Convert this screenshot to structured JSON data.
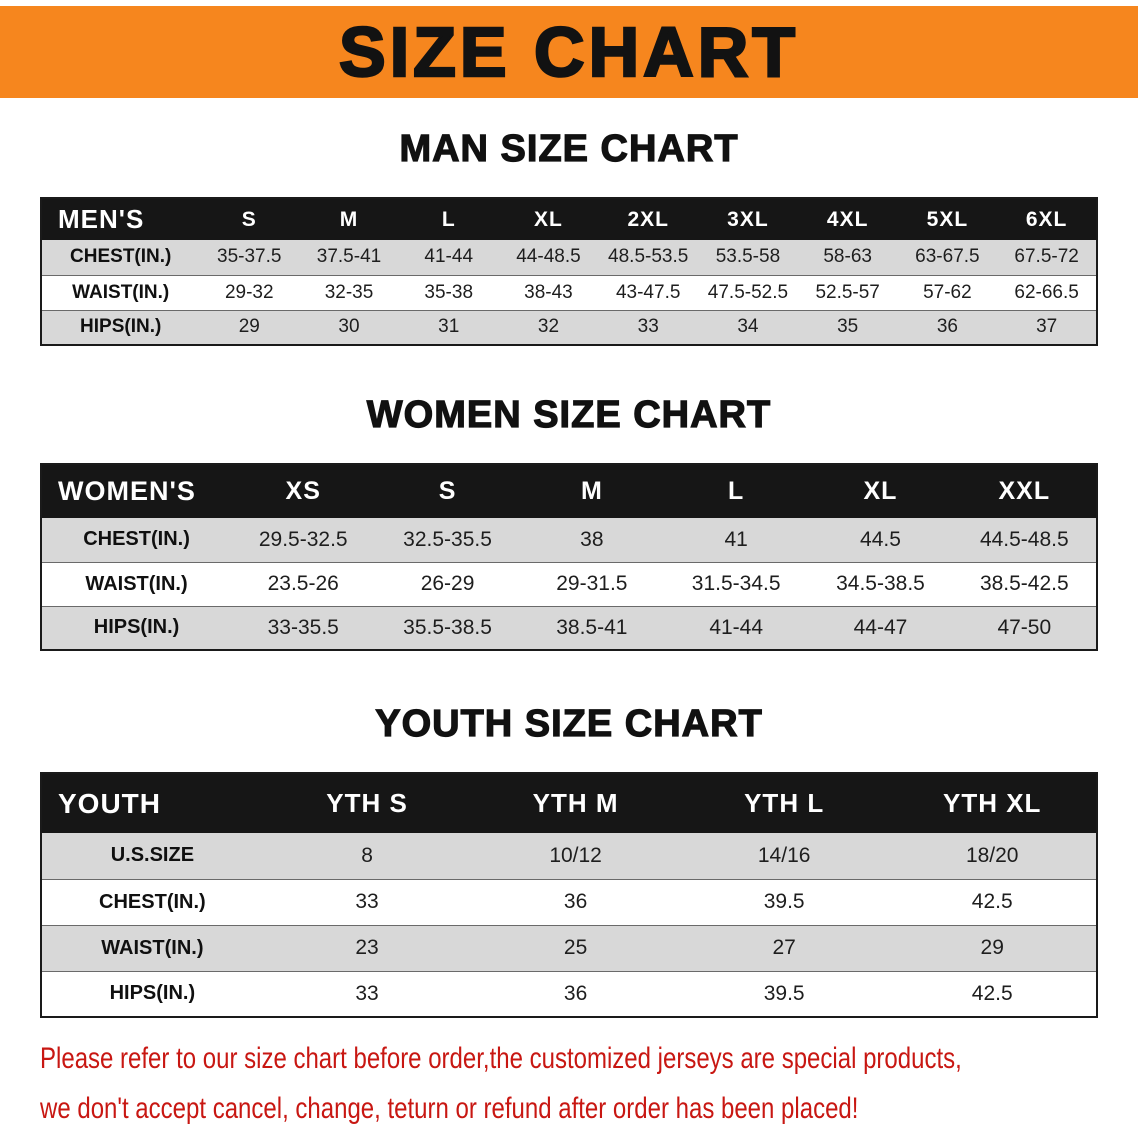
{
  "banner": {
    "title": "SIZE CHART"
  },
  "chart_data": [
    {
      "type": "table",
      "title": "MAN SIZE CHART",
      "columns": [
        "MEN'S",
        "S",
        "M",
        "L",
        "XL",
        "2XL",
        "3XL",
        "4XL",
        "5XL",
        "6XL"
      ],
      "rows": [
        [
          "CHEST(IN.)",
          "35-37.5",
          "37.5-41",
          "41-44",
          "44-48.5",
          "48.5-53.5",
          "53.5-58",
          "58-63",
          "63-67.5",
          "67.5-72"
        ],
        [
          "WAIST(IN.)",
          "29-32",
          "32-35",
          "35-38",
          "38-43",
          "43-47.5",
          "47.5-52.5",
          "52.5-57",
          "57-62",
          "62-66.5"
        ],
        [
          "HIPS(IN.)",
          "29",
          "30",
          "31",
          "32",
          "33",
          "34",
          "35",
          "36",
          "37"
        ]
      ]
    },
    {
      "type": "table",
      "title": "WOMEN SIZE CHART",
      "columns": [
        "WOMEN'S",
        "XS",
        "S",
        "M",
        "L",
        "XL",
        "XXL"
      ],
      "rows": [
        [
          "CHEST(IN.)",
          "29.5-32.5",
          "32.5-35.5",
          "38",
          "41",
          "44.5",
          "44.5-48.5"
        ],
        [
          "WAIST(IN.)",
          "23.5-26",
          "26-29",
          "29-31.5",
          "31.5-34.5",
          "34.5-38.5",
          "38.5-42.5"
        ],
        [
          "HIPS(IN.)",
          "33-35.5",
          "35.5-38.5",
          "38.5-41",
          "41-44",
          "44-47",
          "47-50"
        ]
      ]
    },
    {
      "type": "table",
      "title": "YOUTH SIZE CHART",
      "columns": [
        "YOUTH",
        "YTH S",
        "YTH M",
        "YTH L",
        "YTH XL"
      ],
      "rows": [
        [
          "U.S.SIZE",
          "8",
          "10/12",
          "14/16",
          "18/20"
        ],
        [
          "CHEST(IN.)",
          "33",
          "36",
          "39.5",
          "42.5"
        ],
        [
          "WAIST(IN.)",
          "23",
          "25",
          "27",
          "29"
        ],
        [
          "HIPS(IN.)",
          "33",
          "36",
          "39.5",
          "42.5"
        ]
      ]
    }
  ],
  "footer": {
    "line1": "Please refer to our size chart before order,the customized jerseys are special products,",
    "line2": "we don't accept cancel, change, teturn or refund after order has been placed!"
  },
  "colors": {
    "banner_bg": "#f6861e",
    "header_bg": "#161616",
    "row_shaded": "#d8d8d8",
    "footer_text": "#c81712"
  }
}
